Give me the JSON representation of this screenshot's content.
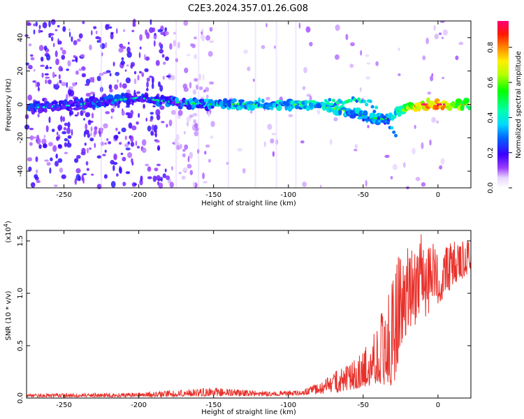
{
  "title": "C2E3.2024.357.01.26.G08",
  "colors": {
    "snr_line": "#e8302a",
    "spectrogram_low": "#7a00ff",
    "spectrogram_high": "#ff0033"
  },
  "chart_data": [
    {
      "type": "heatmap",
      "name": "spectrogram",
      "xlabel": "Height of straight line (km)",
      "ylabel": "Frequency (Hz)",
      "xlim": [
        -275,
        22
      ],
      "ylim": [
        -50,
        50
      ],
      "x_ticks": [
        -250,
        -200,
        -150,
        -100,
        -50,
        0
      ],
      "x_tick_labels": [
        "-250",
        "-200",
        "-150",
        "-100",
        "-50",
        "0"
      ],
      "y_ticks": [
        -40,
        -20,
        0,
        20,
        40
      ],
      "y_tick_labels": [
        "-40",
        "-20",
        "0",
        "20",
        "40"
      ],
      "colorbar": {
        "label": "Normalized spectral amplitude",
        "range": [
          0,
          0.95
        ],
        "ticks": [
          0.0,
          0.2,
          0.4,
          0.6,
          0.8
        ],
        "tick_labels": [
          "0.0",
          "0.2",
          "0.4",
          "0.6",
          "0.8"
        ],
        "colormap": "rainbow (white to violet to blue to cyan to green to yellow to red to magenta)"
      },
      "ridge": {
        "x": [
          -270,
          -250,
          -230,
          -200,
          -175,
          -150,
          -125,
          -100,
          -80,
          -60,
          -45,
          -35,
          -25,
          -10,
          0,
          20
        ],
        "y": [
          -2,
          -1,
          1,
          4,
          1,
          0,
          0,
          0,
          -1,
          -4,
          -8,
          -9,
          -3,
          0,
          0,
          0
        ],
        "amplitude": [
          0.3,
          0.25,
          0.35,
          0.3,
          0.35,
          0.4,
          0.45,
          0.45,
          0.45,
          0.45,
          0.4,
          0.35,
          0.6,
          0.8,
          0.9,
          0.6
        ]
      },
      "secondary_ridge": {
        "x": [
          -75,
          -60,
          -45,
          -35,
          -28
        ],
        "y": [
          1,
          3,
          0,
          -10,
          -20
        ]
      },
      "noise_extent_x": [
        -275,
        -150
      ],
      "grid": false
    },
    {
      "type": "line",
      "name": "snr",
      "xlabel": "Height of straight line (km)",
      "ylabel": "SNR (10 * v/v)",
      "y_scale_label": "(x10^4)",
      "xlim": [
        -275,
        22
      ],
      "ylim": [
        0,
        1.6
      ],
      "x_ticks": [
        -250,
        -200,
        -150,
        -100,
        -50,
        0
      ],
      "x_tick_labels": [
        "-250",
        "-200",
        "-150",
        "-100",
        "-50",
        "0"
      ],
      "y_ticks": [
        0.0,
        0.5,
        1.0,
        1.5
      ],
      "y_tick_labels": [
        "0.0",
        "0.5",
        "1.0",
        "1.5"
      ],
      "envelope": {
        "x": [
          -275,
          -200,
          -150,
          -110,
          -90,
          -75,
          -70,
          -60,
          -50,
          -40,
          -30,
          -28,
          -25,
          -20,
          -10,
          0,
          10,
          22
        ],
        "low": [
          0.01,
          0.01,
          0.02,
          0.02,
          0.03,
          0.04,
          0.05,
          0.07,
          0.1,
          0.15,
          0.08,
          0.2,
          0.5,
          0.65,
          0.75,
          0.9,
          1.05,
          1.2
        ],
        "high": [
          0.04,
          0.05,
          0.1,
          0.06,
          0.08,
          0.18,
          0.26,
          0.32,
          0.45,
          0.78,
          1.15,
          1.3,
          1.4,
          1.45,
          1.58,
          1.45,
          1.5,
          1.52
        ]
      },
      "grid": false
    }
  ]
}
